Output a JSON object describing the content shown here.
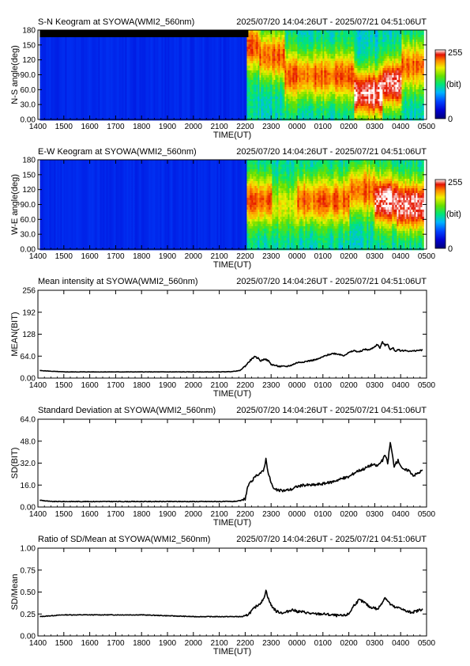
{
  "panels": [
    {
      "title": "S-N Keogram at SYOWA(WMI2_560nm)",
      "range": "2025/07/20 14:04:26UT - 2025/07/21 04:51:06UT"
    },
    {
      "title": "E-W Keogram at SYOWA(WMI2_560nm)",
      "range": "2025/07/20 14:04:26UT - 2025/07/21 04:51:06UT"
    },
    {
      "title": "Mean intensity at SYOWA(WMI2_560nm)",
      "range": "2025/07/20 14:04:26UT - 2025/07/21 04:51:06UT"
    },
    {
      "title": "Standard Deviation at SYOWA(WMI2_560nm)",
      "range": "2025/07/20 14:04:26UT - 2025/07/21 04:51:06UT"
    },
    {
      "title": "Ratio of SD/Mean at SYOWA(WMI2_560nm)",
      "range": "2025/07/20 14:04:26UT - 2025/07/21 04:51:06UT"
    }
  ],
  "colorbar": {
    "max_label": "255",
    "unit_label": "(bit)",
    "min_label": "0"
  },
  "colors": {
    "line": "#000000",
    "cmap": [
      "#00007a",
      "#0000d0",
      "#0044ff",
      "#00b4ff",
      "#00e676",
      "#66e000",
      "#f0f000",
      "#ff8c00",
      "#e41000",
      "#ffffff"
    ]
  },
  "chart_data": [
    {
      "type": "heatmap",
      "title": "S-N Keogram at SYOWA(WMI2_560nm)",
      "xlabel": "TIME(UT)",
      "ylabel": "N-S angle(deg)",
      "xticks": [
        "1400",
        "1500",
        "1600",
        "1700",
        "1800",
        "1900",
        "2000",
        "2100",
        "2200",
        "2300",
        "0000",
        "0100",
        "0200",
        "0300",
        "0400",
        "0500"
      ],
      "yticks": [
        "0.00",
        "30.0",
        "60.0",
        "90.0",
        "120",
        "150",
        "180"
      ],
      "xlim_hours": [
        14.0,
        29.0
      ],
      "ylim": [
        0,
        180
      ],
      "zlim": [
        0,
        255
      ],
      "time_start_hours": 14.074,
      "time_end_hours": 28.852,
      "colorbar_ticks": [
        "255",
        "(bit)",
        "0"
      ],
      "features": [
        {
          "start": 22.05,
          "end": 22.5,
          "intensity": "moderate",
          "center_deg": 150
        },
        {
          "start": 22.5,
          "end": 23.5,
          "intensity": "moderate",
          "center_deg": 130
        },
        {
          "start": 23.5,
          "end": 24.5,
          "intensity": "moderate",
          "center_deg": 90
        },
        {
          "start": 24.5,
          "end": 26.2,
          "intensity": "moderate",
          "center_deg": 90
        },
        {
          "start": 26.2,
          "end": 27.3,
          "intensity": "strong",
          "center_deg": 55
        },
        {
          "start": 27.3,
          "end": 28.0,
          "intensity": "strong",
          "center_deg": 75
        },
        {
          "start": 28.0,
          "end": 28.85,
          "intensity": "moderate",
          "center_deg": 110
        }
      ]
    },
    {
      "type": "heatmap",
      "title": "E-W Keogram at SYOWA(WMI2_560nm)",
      "xlabel": "TIME(UT)",
      "ylabel": "W-E angle(deg)",
      "xticks": [
        "1400",
        "1500",
        "1600",
        "1700",
        "1800",
        "1900",
        "2000",
        "2100",
        "2200",
        "2300",
        "0000",
        "0100",
        "0200",
        "0300",
        "0400",
        "0500"
      ],
      "yticks": [
        "0.00",
        "30.0",
        "60.0",
        "90.0",
        "120",
        "150",
        "180"
      ],
      "xlim_hours": [
        14.0,
        29.0
      ],
      "ylim": [
        0,
        180
      ],
      "zlim": [
        0,
        255
      ],
      "time_start_hours": 14.074,
      "time_end_hours": 28.852,
      "colorbar_ticks": [
        "255",
        "(bit)",
        "0"
      ],
      "features": [
        {
          "start": 22.05,
          "end": 23.0,
          "intensity": "moderate",
          "center_deg": 100
        },
        {
          "start": 23.0,
          "end": 24.0,
          "intensity": "weak",
          "center_deg": 90
        },
        {
          "start": 24.0,
          "end": 26.0,
          "intensity": "moderate",
          "center_deg": 100
        },
        {
          "start": 26.0,
          "end": 27.0,
          "intensity": "moderate",
          "center_deg": 120
        },
        {
          "start": 27.0,
          "end": 27.8,
          "intensity": "strong",
          "center_deg": 100
        },
        {
          "start": 27.8,
          "end": 28.85,
          "intensity": "strong",
          "center_deg": 90
        }
      ]
    },
    {
      "type": "line",
      "title": "Mean intensity at SYOWA(WMI2_560nm)",
      "xlabel": "TIME(UT)",
      "ylabel": "MEAN(BIT)",
      "xticks": [
        "1400",
        "1500",
        "1600",
        "1700",
        "1800",
        "1900",
        "2000",
        "2100",
        "2200",
        "2300",
        "0000",
        "0100",
        "0200",
        "0300",
        "0400",
        "0500"
      ],
      "yticks": [
        "0.00",
        "64.0",
        "128",
        "192",
        "256"
      ],
      "xlim_hours": [
        14.0,
        29.0
      ],
      "ylim": [
        0,
        256
      ],
      "series": [
        {
          "x": [
            14.07,
            14.5,
            15.0,
            16.0,
            17.0,
            18.0,
            19.0,
            20.0,
            21.0,
            21.5,
            21.8,
            22.0,
            22.2,
            22.35,
            22.5,
            22.6,
            22.75,
            22.9,
            23.0,
            23.3,
            23.6,
            23.8,
            24.0,
            24.3,
            24.6,
            24.8,
            25.0,
            25.2,
            25.4,
            25.6,
            25.8,
            26.0,
            26.2,
            26.4,
            26.6,
            26.8,
            27.0,
            27.1,
            27.2,
            27.3,
            27.4,
            27.5,
            27.6,
            27.7,
            27.8,
            27.9,
            28.0,
            28.2,
            28.4,
            28.6,
            28.85
          ],
          "y": [
            22,
            20,
            18,
            18,
            18,
            18,
            18,
            18,
            18,
            19,
            22,
            35,
            52,
            62,
            58,
            50,
            56,
            50,
            40,
            34,
            34,
            38,
            45,
            48,
            52,
            55,
            62,
            68,
            72,
            70,
            66,
            74,
            80,
            76,
            84,
            82,
            92,
            98,
            88,
            105,
            95,
            100,
            82,
            88,
            78,
            84,
            80,
            80,
            78,
            80,
            82
          ]
        }
      ]
    },
    {
      "type": "line",
      "title": "Standard Deviation at SYOWA(WMI2_560nm)",
      "xlabel": "TIME(UT)",
      "ylabel": "SD(BIT)",
      "xticks": [
        "1400",
        "1500",
        "1600",
        "1700",
        "1800",
        "1900",
        "2000",
        "2100",
        "2200",
        "2300",
        "0000",
        "0100",
        "0200",
        "0300",
        "0400",
        "0500"
      ],
      "yticks": [
        "0.00",
        "16.0",
        "32.0",
        "48.0",
        "64.0"
      ],
      "xlim_hours": [
        14.0,
        29.0
      ],
      "ylim": [
        0,
        64
      ],
      "series": [
        {
          "x": [
            14.07,
            14.5,
            15.0,
            16.0,
            17.0,
            18.0,
            19.0,
            20.0,
            21.0,
            21.5,
            21.8,
            22.0,
            22.1,
            22.3,
            22.5,
            22.7,
            22.8,
            22.9,
            23.0,
            23.1,
            23.3,
            23.5,
            23.8,
            24.0,
            24.3,
            24.6,
            25.0,
            25.3,
            25.6,
            26.0,
            26.3,
            26.6,
            26.9,
            27.1,
            27.3,
            27.4,
            27.5,
            27.6,
            27.75,
            27.9,
            28.1,
            28.3,
            28.5,
            28.7,
            28.85
          ],
          "y": [
            5,
            4,
            4,
            4,
            4,
            4,
            4,
            4,
            4,
            4,
            4.5,
            6,
            15,
            20,
            24,
            26,
            35,
            24,
            18,
            13,
            12,
            12,
            13,
            15,
            16,
            16,
            17,
            18,
            20,
            22,
            26,
            28,
            31,
            30,
            34,
            38,
            32,
            47,
            30,
            34,
            27,
            27,
            23,
            25,
            27
          ]
        }
      ]
    },
    {
      "type": "line",
      "title": "Ratio of SD/Mean at SYOWA(WMI2_560nm)",
      "xlabel": "TIME(UT)",
      "ylabel": "SD/Mean",
      "xticks": [
        "1400",
        "1500",
        "1600",
        "1700",
        "1800",
        "1900",
        "2000",
        "2100",
        "2200",
        "2300",
        "0000",
        "0100",
        "0200",
        "0300",
        "0400",
        "0500"
      ],
      "yticks": [
        "0.00",
        "0.25",
        "0.50",
        "0.75",
        "1.00"
      ],
      "xlim_hours": [
        14.0,
        29.0
      ],
      "ylim": [
        0,
        1
      ],
      "series": [
        {
          "x": [
            14.07,
            14.5,
            15.0,
            16.0,
            17.0,
            18.0,
            19.0,
            20.0,
            21.0,
            21.5,
            21.8,
            22.0,
            22.2,
            22.4,
            22.6,
            22.7,
            22.8,
            22.9,
            23.0,
            23.2,
            23.5,
            23.8,
            24.0,
            24.3,
            24.6,
            25.0,
            25.3,
            25.6,
            25.8,
            26.0,
            26.2,
            26.4,
            26.6,
            26.8,
            27.0,
            27.1,
            27.2,
            27.4,
            27.5,
            27.6,
            27.8,
            28.0,
            28.2,
            28.4,
            28.6,
            28.85
          ],
          "y": [
            0.22,
            0.23,
            0.24,
            0.24,
            0.24,
            0.24,
            0.23,
            0.22,
            0.22,
            0.22,
            0.22,
            0.22,
            0.27,
            0.33,
            0.38,
            0.41,
            0.52,
            0.42,
            0.35,
            0.28,
            0.26,
            0.3,
            0.28,
            0.27,
            0.25,
            0.25,
            0.24,
            0.23,
            0.23,
            0.25,
            0.35,
            0.41,
            0.38,
            0.33,
            0.32,
            0.3,
            0.34,
            0.44,
            0.4,
            0.36,
            0.32,
            0.32,
            0.28,
            0.27,
            0.28,
            0.31
          ]
        }
      ]
    }
  ]
}
